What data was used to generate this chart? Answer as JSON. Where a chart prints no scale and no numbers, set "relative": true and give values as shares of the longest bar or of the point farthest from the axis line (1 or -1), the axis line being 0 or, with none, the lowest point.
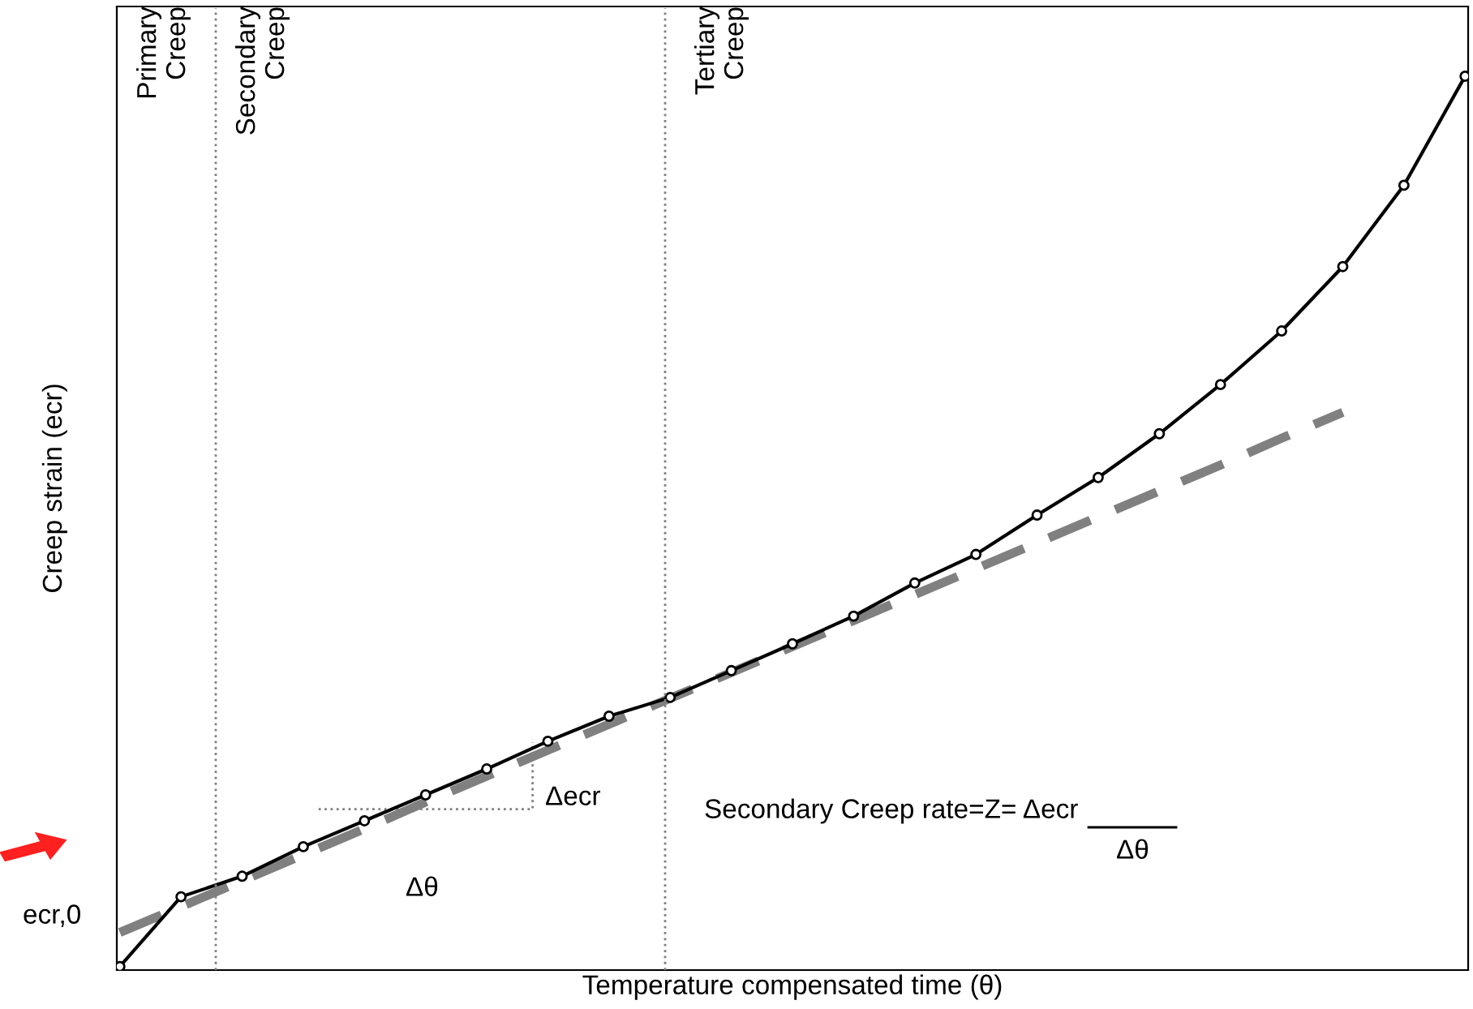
{
  "chart_data": {
    "type": "line",
    "relative": true,
    "tick_labels": false,
    "xlabel": "Temperature compensated time (θ)",
    "ylabel": "Creep strain (ecr)",
    "categories": [
      null,
      null,
      null,
      null,
      null,
      null,
      null,
      null,
      null,
      null,
      null,
      null,
      null,
      null,
      null,
      null,
      null,
      null,
      null,
      null,
      null,
      null,
      null
    ],
    "series": [
      {
        "color": "#000000",
        "marker": "circle",
        "line_style": "solid",
        "values": [
          0.004,
          0.082,
          0.105,
          0.138,
          0.167,
          0.196,
          0.225,
          0.256,
          0.284,
          0.305,
          0.335,
          0.365,
          0.396,
          0.433,
          0.465,
          0.509,
          0.551,
          0.6,
          0.655,
          0.715,
          0.787,
          0.878,
          1
        ]
      },
      {
        "color": "#808080",
        "marker": "none",
        "line_style": "dashed",
        "values": [
          0.042,
          0.071,
          0.1,
          0.129,
          0.158,
          0.188,
          0.217,
          0.246,
          0.275,
          0.304,
          0.333,
          0.362,
          0.391,
          0.42,
          0.449,
          0.478,
          0.507,
          0.536,
          0.565,
          0.595,
          0.624,
          null,
          null
        ]
      }
    ],
    "annotations": [
      "Primary\nCreep",
      "Secondary\nCreep",
      "Tertiary\nCreep",
      "Δecr",
      "Δθ",
      "ecr,0",
      "Secondary Creep rate=Z= Δecr",
      "Δθ"
    ]
  }
}
